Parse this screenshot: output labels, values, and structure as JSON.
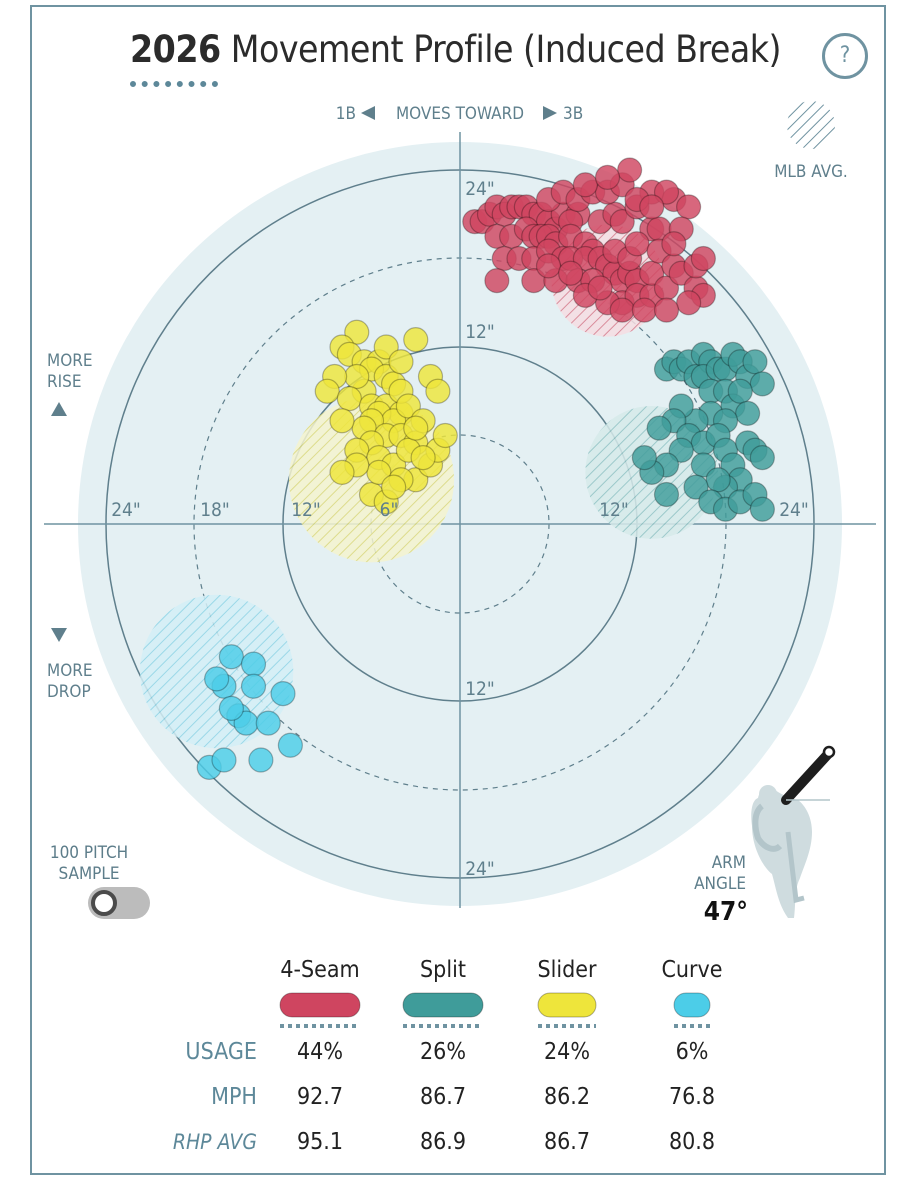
{
  "title": {
    "year": "2026",
    "text": "Movement Profile (Induced Break)"
  },
  "help_label": "?",
  "toward_label": {
    "left": "1B",
    "middle": "MOVES TOWARD",
    "right": "3B"
  },
  "mlb_avg_label": "MLB AVG.",
  "rise_label": {
    "line1": "MORE",
    "line2": "RISE"
  },
  "drop_label": {
    "line1": "MORE",
    "line2": "DROP"
  },
  "sample": {
    "line1": "100 PITCH",
    "line2": "SAMPLE",
    "enabled": false
  },
  "arm_angle": {
    "line1": "ARM",
    "line2": "ANGLE",
    "value": "47°",
    "degrees": 47
  },
  "icons": {
    "help": "question-icon",
    "toggle": "toggle-switch",
    "pitcher": "pitcher-silhouette-icon"
  },
  "colors": {
    "fourseam": "#cf4560",
    "split": "#3f9c9a",
    "slider": "#eee53b",
    "curve": "#4ccde8",
    "accent": "#6f93a1",
    "field": "#e4f0f3"
  },
  "chart_data": {
    "type": "scatter",
    "x_unit": "inches horizontal break (negative = toward 1B, positive = toward 3B)",
    "y_unit": "inches induced vertical break",
    "ring_labels": {
      "horizontal_left": [
        "24\"",
        "18\"",
        "12\"",
        "6\""
      ],
      "horizontal_right": [
        "12\"",
        "24\""
      ],
      "vertical_top": [
        "24\"",
        "12\""
      ],
      "vertical_bottom": [
        "12\"",
        "24\""
      ]
    },
    "pitches": [
      {
        "name": "4-Seam",
        "color": "#cf4560",
        "usage": "44%",
        "mph": "92.7",
        "rhp_avg": "95.1",
        "mlb_avg": {
          "x": 10,
          "y": 16.5,
          "r": 3.8
        },
        "points": [
          [
            1,
            20.5
          ],
          [
            1.5,
            20.5
          ],
          [
            2,
            21
          ],
          [
            2.5,
            21.5
          ],
          [
            3,
            21
          ],
          [
            3.5,
            21.5
          ],
          [
            4,
            21.5
          ],
          [
            4.5,
            21.5
          ],
          [
            5,
            21
          ],
          [
            5.5,
            21
          ],
          [
            6,
            20.5
          ],
          [
            6.5,
            20
          ],
          [
            7,
            21
          ],
          [
            8,
            21
          ],
          [
            7.5,
            20.5
          ],
          [
            2.5,
            19.5
          ],
          [
            3.5,
            19.5
          ],
          [
            4.5,
            20
          ],
          [
            5,
            19.5
          ],
          [
            5.5,
            19.5
          ],
          [
            6,
            19.5
          ],
          [
            6.5,
            19
          ],
          [
            7.5,
            19.5
          ],
          [
            8.5,
            19
          ],
          [
            9,
            18.5
          ],
          [
            3,
            18
          ],
          [
            4,
            18
          ],
          [
            5,
            18
          ],
          [
            6,
            18.5
          ],
          [
            7,
            18
          ],
          [
            7.5,
            18
          ],
          [
            8.5,
            18
          ],
          [
            9.5,
            18
          ],
          [
            10,
            17.5
          ],
          [
            2.5,
            16.5
          ],
          [
            5,
            16.5
          ],
          [
            6.5,
            16.5
          ],
          [
            8,
            16.5
          ],
          [
            9,
            16.5
          ],
          [
            10.5,
            17
          ],
          [
            11,
            16.5
          ],
          [
            11.5,
            17
          ],
          [
            12,
            16.5
          ],
          [
            11,
            15
          ],
          [
            12,
            15.5
          ],
          [
            13,
            15.5
          ],
          [
            13,
            17
          ],
          [
            10,
            15
          ],
          [
            11,
            14.5
          ],
          [
            12.5,
            14.5
          ],
          [
            14,
            16
          ],
          [
            10.5,
            18.5
          ],
          [
            11.5,
            18
          ],
          [
            9.5,
            20.5
          ],
          [
            10.5,
            21
          ],
          [
            11,
            20.5
          ],
          [
            12,
            21.5
          ],
          [
            13,
            20
          ],
          [
            13.5,
            20
          ],
          [
            14.5,
            22
          ],
          [
            15.5,
            21.5
          ],
          [
            6,
            22
          ],
          [
            7,
            22.5
          ],
          [
            8,
            22
          ],
          [
            9,
            22.5
          ],
          [
            10,
            22.5
          ],
          [
            11,
            23
          ],
          [
            11.5,
            24
          ],
          [
            13,
            22.5
          ],
          [
            14,
            22.5
          ],
          [
            15,
            20
          ],
          [
            8.5,
            23
          ],
          [
            10,
            23.5
          ],
          [
            12,
            22
          ],
          [
            13,
            21.5
          ],
          [
            6,
            17.5
          ],
          [
            7.5,
            17
          ],
          [
            8.5,
            15.5
          ],
          [
            9.5,
            16
          ],
          [
            12,
            19
          ],
          [
            13.5,
            18.5
          ],
          [
            14.5,
            17.5
          ],
          [
            14.5,
            19
          ],
          [
            15,
            17
          ],
          [
            16,
            16
          ],
          [
            16.5,
            15.5
          ],
          [
            15.5,
            15
          ],
          [
            14,
            14.5
          ],
          [
            16,
            17.5
          ],
          [
            16.5,
            18
          ]
        ]
      },
      {
        "name": "Split",
        "color": "#3f9c9a",
        "usage": "26%",
        "mph": "86.7",
        "rhp_avg": "86.9",
        "mlb_avg": {
          "x": 13,
          "y": 3.5,
          "r": 4.5
        },
        "points": [
          [
            14,
            10.5
          ],
          [
            14.5,
            11
          ],
          [
            15,
            10.5
          ],
          [
            15.5,
            11
          ],
          [
            16,
            10
          ],
          [
            16.5,
            11.5
          ],
          [
            17,
            11
          ],
          [
            16.5,
            10
          ],
          [
            17.5,
            10.5
          ],
          [
            18,
            10.5
          ],
          [
            18.5,
            11.5
          ],
          [
            19,
            11
          ],
          [
            19.5,
            10
          ],
          [
            20,
            11
          ],
          [
            20.5,
            9.5
          ],
          [
            17,
            9
          ],
          [
            18,
            9
          ],
          [
            18.5,
            8
          ],
          [
            19,
            9
          ],
          [
            19.5,
            7.5
          ],
          [
            17,
            7.5
          ],
          [
            18,
            7
          ],
          [
            16,
            7
          ],
          [
            15,
            8
          ],
          [
            14.5,
            7
          ],
          [
            13.5,
            6.5
          ],
          [
            15.5,
            6
          ],
          [
            16.5,
            5.5
          ],
          [
            17.5,
            6
          ],
          [
            18,
            5
          ],
          [
            18.5,
            4
          ],
          [
            19.5,
            5.5
          ],
          [
            20,
            5
          ],
          [
            20.5,
            4.5
          ],
          [
            19,
            3
          ],
          [
            18,
            2.5
          ],
          [
            16.5,
            4
          ],
          [
            17.5,
            3
          ],
          [
            15,
            5
          ],
          [
            14,
            4
          ],
          [
            13,
            3.5
          ],
          [
            12.5,
            4.5
          ],
          [
            14,
            2
          ],
          [
            16,
            2.5
          ],
          [
            17,
            1.5
          ],
          [
            18,
            1
          ],
          [
            19,
            1.5
          ],
          [
            20,
            2
          ],
          [
            20.5,
            1
          ]
        ]
      },
      {
        "name": "Slider",
        "color": "#eee53b",
        "usage": "24%",
        "mph": "86.2",
        "rhp_avg": "86.7",
        "mlb_avg": {
          "x": -6,
          "y": 3,
          "r": 5.6
        },
        "points": [
          [
            -7,
            13
          ],
          [
            -8,
            12
          ],
          [
            -7.5,
            11.5
          ],
          [
            -6.5,
            11
          ],
          [
            -5.5,
            11
          ],
          [
            -6,
            10.5
          ],
          [
            -5,
            10
          ],
          [
            -4.5,
            9.5
          ],
          [
            -6.5,
            9
          ],
          [
            -7,
            10
          ],
          [
            -8.5,
            10
          ],
          [
            -9,
            9
          ],
          [
            -7.5,
            8.5
          ],
          [
            -6,
            8
          ],
          [
            -5,
            8
          ],
          [
            -4,
            7.5
          ],
          [
            -5.5,
            7.5
          ],
          [
            -4.5,
            7
          ],
          [
            -6,
            7
          ],
          [
            -6.5,
            6.5
          ],
          [
            -5,
            6
          ],
          [
            -4,
            6
          ],
          [
            -3,
            5.5
          ],
          [
            -6,
            5.5
          ],
          [
            -7,
            5
          ],
          [
            -5.5,
            4.5
          ],
          [
            -4.5,
            4
          ],
          [
            -3,
            3
          ],
          [
            -2,
            4
          ],
          [
            -1.5,
            5
          ],
          [
            -3.5,
            5
          ],
          [
            -2.5,
            4.5
          ],
          [
            -6,
            2
          ],
          [
            -5.5,
            3.5
          ],
          [
            -4,
            3
          ],
          [
            -5,
            1.5
          ],
          [
            -4.5,
            2.5
          ],
          [
            -7,
            4
          ],
          [
            -8,
            3.5
          ],
          [
            -4,
            9
          ],
          [
            -3.5,
            8
          ],
          [
            -5,
            12
          ],
          [
            -3,
            12.5
          ],
          [
            -4,
            11
          ],
          [
            -2,
            10
          ],
          [
            -1.5,
            9
          ],
          [
            -2.5,
            7
          ],
          [
            -3,
            6.5
          ],
          [
            -1,
            6
          ],
          [
            -8,
            7
          ]
        ]
      },
      {
        "name": "Curve",
        "color": "#4ccde8",
        "usage": "6%",
        "mph": "76.8",
        "rhp_avg": "80.8",
        "mlb_avg": {
          "x": -16.5,
          "y": -10,
          "r": 5.2
        },
        "points": [
          [
            -15.5,
            -9
          ],
          [
            -14,
            -9.5
          ],
          [
            -16,
            -11
          ],
          [
            -12,
            -11.5
          ],
          [
            -15,
            -13
          ],
          [
            -14.5,
            -13.5
          ],
          [
            -13,
            -13.5
          ],
          [
            -11.5,
            -15
          ],
          [
            -17,
            -16.5
          ],
          [
            -16,
            -16
          ],
          [
            -13.5,
            -16
          ],
          [
            -15.5,
            -12.5
          ],
          [
            -14,
            -11
          ],
          [
            -16.5,
            -10.5
          ]
        ]
      }
    ]
  },
  "table": {
    "row_labels": {
      "usage": "USAGE",
      "mph": "MPH",
      "rhp_avg": "RHP AVG"
    }
  }
}
